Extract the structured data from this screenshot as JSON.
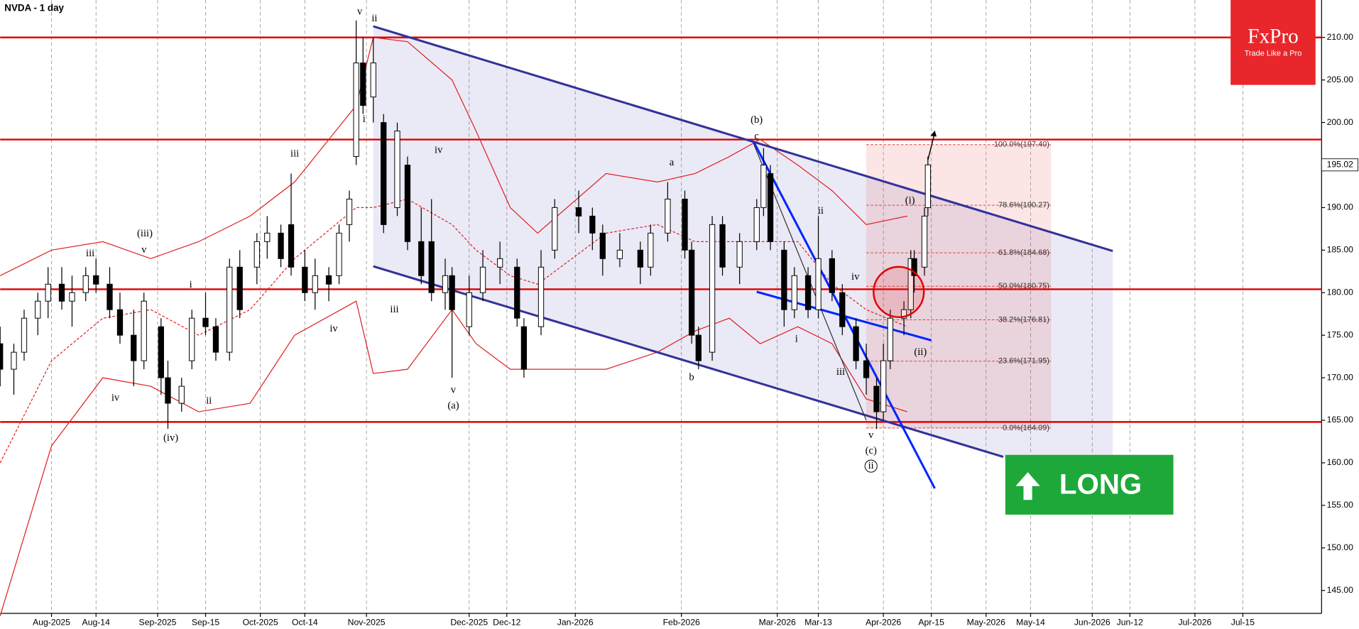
{
  "chart_data": {
    "type": "candlestick",
    "title": "NVDA - 1 day",
    "dates": [
      "2025-07-17",
      "2025-07-21",
      "2025-07-24",
      "2025-07-28",
      "2025-07-31",
      "2025-08-04",
      "2025-08-07",
      "2025-08-11",
      "2025-08-14",
      "2025-08-18",
      "2025-08-21",
      "2025-08-25",
      "2025-08-28",
      "2025-09-02",
      "2025-09-04",
      "2025-09-08",
      "2025-09-11",
      "2025-09-15",
      "2025-09-18",
      "2025-09-22",
      "2025-09-25",
      "2025-09-30",
      "2025-10-03",
      "2025-10-07",
      "2025-10-10",
      "2025-10-14",
      "2025-10-17",
      "2025-10-21",
      "2025-10-24",
      "2025-10-27",
      "2025-10-29",
      "2025-10-31",
      "2025-11-03",
      "2025-11-06",
      "2025-11-10",
      "2025-11-13",
      "2025-11-17",
      "2025-11-20",
      "2025-11-24",
      "2025-11-26",
      "2025-12-01",
      "2025-12-05",
      "2025-12-10",
      "2025-12-15",
      "2025-12-17",
      "2025-12-22",
      "2025-12-26",
      "2026-01-02",
      "2026-01-06",
      "2026-01-09",
      "2026-01-14",
      "2026-01-20",
      "2026-01-23",
      "2026-01-28",
      "2026-02-02",
      "2026-02-04",
      "2026-02-06",
      "2026-02-10",
      "2026-02-13",
      "2026-02-18",
      "2026-02-23",
      "2026-02-25",
      "2026-02-27",
      "2026-03-03",
      "2026-03-06",
      "2026-03-10",
      "2026-03-13",
      "2026-03-17",
      "2026-03-20",
      "2026-03-24",
      "2026-03-27",
      "2026-03-30",
      "2026-04-01",
      "2026-04-03",
      "2026-04-07",
      "2026-04-09",
      "2026-04-10",
      "2026-04-13",
      "2026-04-14"
    ],
    "open": [
      174,
      171,
      173,
      177,
      179,
      181,
      179,
      180,
      182,
      181,
      178,
      175,
      172,
      176,
      170,
      167,
      172,
      177,
      176,
      173,
      183,
      183,
      186,
      187,
      188,
      183,
      180,
      182,
      182,
      188,
      196,
      207,
      203,
      200,
      190,
      195,
      186,
      186,
      180,
      182,
      176,
      180,
      183,
      183,
      176,
      176,
      185,
      190,
      189,
      187,
      184,
      185,
      183,
      187,
      191,
      185,
      175,
      173,
      188,
      183,
      186,
      190,
      194,
      185,
      178,
      182,
      178,
      184,
      180,
      176,
      172,
      169,
      166,
      172,
      177,
      178,
      184,
      183,
      190
    ],
    "high": [
      176,
      174,
      178,
      180,
      183,
      183,
      182,
      183,
      184,
      183,
      180,
      178,
      180,
      177,
      172,
      170,
      178,
      180,
      177,
      184,
      185,
      187,
      189,
      188,
      194,
      185,
      184,
      183,
      188,
      192,
      212,
      210,
      210,
      201,
      200,
      196,
      190,
      191,
      184,
      183,
      182,
      185,
      186,
      184,
      177,
      185,
      191,
      192,
      190,
      188,
      187,
      186,
      188,
      193,
      192,
      186,
      176,
      189,
      189,
      187,
      191,
      197,
      195,
      186,
      183,
      183,
      189,
      185,
      181,
      177,
      174,
      170,
      174,
      178,
      179,
      185,
      185,
      190,
      196
    ],
    "low": [
      169,
      168,
      172,
      175,
      177,
      178,
      176,
      179,
      180,
      177,
      174,
      169,
      171,
      168,
      164,
      166,
      171,
      175,
      172,
      172,
      177,
      181,
      184,
      183,
      182,
      179,
      178,
      179,
      181,
      186,
      195,
      201,
      200,
      187,
      189,
      185,
      181,
      179,
      178,
      170,
      175,
      179,
      181,
      176,
      170,
      175,
      184,
      187,
      185,
      182,
      183,
      181,
      182,
      186,
      184,
      174,
      171,
      172,
      182,
      181,
      185,
      189,
      185,
      176,
      177,
      177,
      177,
      179,
      175,
      171,
      168,
      164,
      165,
      171,
      175,
      177,
      180,
      182,
      189
    ],
    "close": [
      171,
      173,
      177,
      179,
      181,
      179,
      180,
      182,
      181,
      178,
      175,
      172,
      179,
      170,
      167,
      169,
      177,
      176,
      173,
      183,
      178,
      186,
      187,
      184,
      183,
      180,
      182,
      181,
      187,
      191,
      207,
      202,
      207,
      188,
      199,
      186,
      182,
      180,
      182,
      178,
      180,
      183,
      184,
      177,
      171,
      183,
      190,
      189,
      187,
      184,
      185,
      183,
      187,
      191,
      185,
      175,
      172,
      188,
      183,
      186,
      190,
      195,
      186,
      178,
      182,
      178,
      184,
      180,
      176,
      172,
      170,
      166,
      172,
      177,
      178,
      184,
      182,
      189,
      195.02
    ],
    "last_price": 195.02,
    "bands": {
      "dates": [
        "2025-07-17",
        "2025-08-01",
        "2025-08-16",
        "2025-08-30",
        "2025-09-13",
        "2025-09-28",
        "2025-10-11",
        "2025-10-29",
        "2025-11-03",
        "2025-11-13",
        "2025-11-26",
        "2025-12-03",
        "2025-12-13",
        "2025-12-21",
        "2026-01-10",
        "2026-01-25",
        "2026-02-05",
        "2026-02-15",
        "2026-02-24",
        "2026-03-07",
        "2026-03-17",
        "2026-03-27",
        "2026-04-08"
      ],
      "upper": [
        182,
        185,
        186,
        184,
        186,
        189,
        193,
        202,
        210,
        209.5,
        205,
        199,
        190,
        187,
        194,
        193,
        194,
        196,
        198,
        195,
        192,
        188,
        189
      ],
      "middle": [
        160,
        172,
        177,
        178,
        175,
        178,
        184,
        190,
        190,
        191,
        188,
        185,
        182,
        181,
        187,
        188,
        186,
        186,
        186,
        186,
        181,
        178,
        176
      ],
      "lower": [
        142,
        162,
        170,
        169,
        166,
        167,
        175,
        179,
        170.5,
        171,
        178,
        174,
        171,
        171,
        171,
        173,
        175.5,
        177,
        174,
        176,
        174,
        167.5,
        166
      ],
      "color": "#e02020"
    },
    "levels": [
      210,
      198,
      180.4,
      164.8
    ],
    "level_color": "#e00000",
    "channel": {
      "color": "#32329a",
      "upper": {
        "dates": [
          "2025-11-03",
          "2026-06-07"
        ],
        "values": [
          211.3,
          184.9
        ]
      },
      "lower": {
        "dates": [
          "2025-11-03",
          "2026-05-06"
        ],
        "values": [
          183.1,
          160.7
        ]
      }
    },
    "trendlines": [
      {
        "color": "#0026ff",
        "dates": [
          "2026-02-22",
          "2026-04-16"
        ],
        "values": [
          197.8,
          157
        ]
      },
      {
        "color": "#0026ff",
        "dates": [
          "2026-02-23",
          "2026-04-15"
        ],
        "values": [
          180.1,
          174.4
        ]
      },
      {
        "color": "#333333",
        "dates": [
          "2026-02-22",
          "2026-03-27"
        ],
        "values": [
          197.6,
          165
        ]
      }
    ],
    "fib": {
      "start": "2026-03-27",
      "end": "2026-05-20",
      "levels": [
        {
          "value": 197.4,
          "label": "100.0%(197.40)"
        },
        {
          "value": 190.27,
          "label": "78.6%(190.27)"
        },
        {
          "value": 184.68,
          "label": "61.8%(184.68)"
        },
        {
          "value": 180.75,
          "label": "50.0%(180.75)"
        },
        {
          "value": 176.81,
          "label": "38.2%(176.81)"
        },
        {
          "value": 171.95,
          "label": "23.6%(171.95)"
        },
        {
          "value": 164.09,
          "label": "0.0%(164.09)"
        }
      ]
    },
    "annotations": [
      "v",
      "ii",
      "i",
      "iii",
      "(iii)",
      "v",
      "iii",
      "iv",
      "(iv)",
      "ii",
      "i",
      "iv",
      "iii",
      "iv",
      "v",
      "(a)",
      "(b)",
      "c",
      "a",
      "b",
      "ii",
      "iv",
      "i",
      "iii",
      "v",
      "(c)",
      "ii",
      "(i)",
      "(ii)"
    ],
    "xlim": [
      "2025-07-17",
      "2026-08-07"
    ],
    "ylim": [
      142.3,
      214.4
    ],
    "xticks": [
      {
        "value": "2025-08-01",
        "label": "Aug-2025"
      },
      {
        "value": "2025-08-14",
        "label": "Aug-14"
      },
      {
        "value": "2025-09-01",
        "label": "Sep-2025"
      },
      {
        "value": "2025-09-15",
        "label": "Sep-15"
      },
      {
        "value": "2025-10-01",
        "label": "Oct-2025"
      },
      {
        "value": "2025-10-14",
        "label": "Oct-14"
      },
      {
        "value": "2025-11-01",
        "label": "Nov-2025"
      },
      {
        "value": "2025-12-01",
        "label": "Dec-2025"
      },
      {
        "value": "2025-12-12",
        "label": "Dec-12"
      },
      {
        "value": "2026-01-01",
        "label": "Jan-2026"
      },
      {
        "value": "2026-02-01",
        "label": "Feb-2026"
      },
      {
        "value": "2026-03-01",
        "label": "Mar-2026"
      },
      {
        "value": "2026-03-13",
        "label": "Mar-13"
      },
      {
        "value": "2026-04-01",
        "label": "Apr-2026"
      },
      {
        "value": "2026-04-15",
        "label": "Apr-15"
      },
      {
        "value": "2026-05-01",
        "label": "May-2026"
      },
      {
        "value": "2026-05-14",
        "label": "May-14"
      },
      {
        "value": "2026-06-01",
        "label": "Jun-2026"
      },
      {
        "value": "2026-06-12",
        "label": "Jun-12"
      },
      {
        "value": "2026-07-01",
        "label": "Jul-2026"
      },
      {
        "value": "2026-07-15",
        "label": "Jul-15"
      }
    ],
    "yticks": [
      {
        "value": 145,
        "label": "145.00"
      },
      {
        "value": 150,
        "label": "150.00"
      },
      {
        "value": 155,
        "label": "155.00"
      },
      {
        "value": 160,
        "label": "160.00"
      },
      {
        "value": 165,
        "label": "165.00"
      },
      {
        "value": 170,
        "label": "170.00"
      },
      {
        "value": 175,
        "label": "175.00"
      },
      {
        "value": 180,
        "label": "180.00"
      },
      {
        "value": 185,
        "label": "185.00"
      },
      {
        "value": 190,
        "label": "190.00"
      },
      {
        "value": 195,
        "label": "195.00"
      },
      {
        "value": 200,
        "label": "200.00"
      },
      {
        "value": 205,
        "label": "205.00"
      },
      {
        "value": 210,
        "label": "210.00"
      }
    ],
    "grid": true
  },
  "brand": {
    "name": "FxPro",
    "slogan": "Trade Like a Pro"
  },
  "signal": "LONG"
}
